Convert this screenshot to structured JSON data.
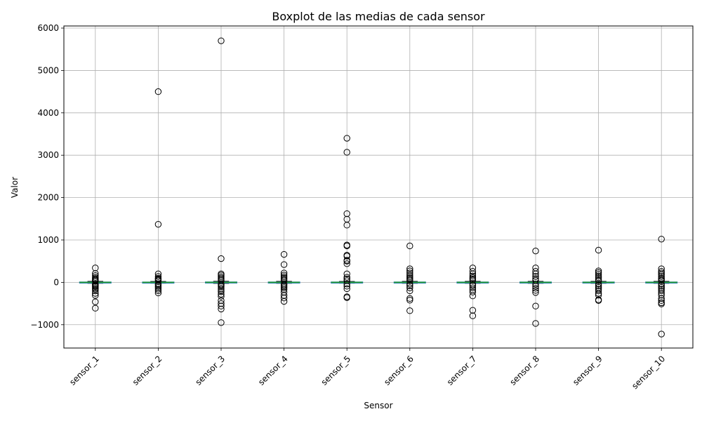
{
  "chart_data": {
    "type": "box",
    "title": "Boxplot de las medias de cada sensor",
    "xlabel": "Sensor",
    "ylabel": "Valor",
    "ylim": [
      -1550,
      6050
    ],
    "yticks": [
      -1000,
      0,
      1000,
      2000,
      3000,
      4000,
      5000,
      6000
    ],
    "ytick_labels": [
      "−1000",
      "0",
      "1000",
      "2000",
      "3000",
      "4000",
      "5000",
      "6000"
    ],
    "grid": true,
    "colors": {
      "box": "#1f77b4",
      "median": "#2ca02c",
      "outlier_edge": "#000000",
      "grid": "#b0b0b0"
    },
    "categories": [
      "sensor_1",
      "sensor_2",
      "sensor_3",
      "sensor_4",
      "sensor_5",
      "sensor_6",
      "sensor_7",
      "sensor_8",
      "sensor_9",
      "sensor_10"
    ],
    "boxes": [
      {
        "name": "sensor_1",
        "whislo": -22,
        "q1": -8,
        "med": 0,
        "q3": 8,
        "whishi": 22,
        "fliers": [
          340,
          210,
          160,
          120,
          90,
          70,
          50,
          30,
          -40,
          -60,
          -80,
          -100,
          -130,
          -160,
          -200,
          -260,
          -310,
          -460,
          -610
        ]
      },
      {
        "name": "sensor_2",
        "whislo": -20,
        "q1": -7,
        "med": 0,
        "q3": 7,
        "whishi": 20,
        "fliers": [
          4500,
          1370,
          200,
          140,
          100,
          80,
          60,
          40,
          -40,
          -60,
          -90,
          -120,
          -160,
          -200,
          -250
        ]
      },
      {
        "name": "sensor_3",
        "whislo": -25,
        "q1": -9,
        "med": 0,
        "q3": 9,
        "whishi": 25,
        "fliers": [
          5700,
          560,
          200,
          170,
          130,
          100,
          70,
          40,
          -40,
          -70,
          -100,
          -140,
          -180,
          -220,
          -280,
          -330,
          -430,
          -500,
          -560,
          -630,
          -950
        ]
      },
      {
        "name": "sensor_4",
        "whislo": -22,
        "q1": -8,
        "med": 0,
        "q3": 8,
        "whishi": 22,
        "fliers": [
          660,
          420,
          220,
          170,
          130,
          100,
          70,
          40,
          -40,
          -70,
          -100,
          -130,
          -170,
          -230,
          -310,
          -370,
          -450
        ]
      },
      {
        "name": "sensor_5",
        "whislo": -20,
        "q1": -8,
        "med": 0,
        "q3": 8,
        "whishi": 20,
        "fliers": [
          3400,
          3070,
          1620,
          1490,
          1350,
          880,
          860,
          640,
          620,
          520,
          500,
          440,
          200,
          120,
          80,
          40,
          -40,
          -90,
          -150,
          -340,
          -360
        ]
      },
      {
        "name": "sensor_6",
        "whislo": -22,
        "q1": -8,
        "med": 0,
        "q3": 8,
        "whishi": 22,
        "fliers": [
          860,
          320,
          270,
          220,
          170,
          130,
          100,
          70,
          40,
          -40,
          -80,
          -130,
          -200,
          -380,
          -420,
          -670
        ]
      },
      {
        "name": "sensor_7",
        "whislo": -22,
        "q1": -8,
        "med": 0,
        "q3": 8,
        "whishi": 22,
        "fliers": [
          340,
          260,
          200,
          150,
          110,
          80,
          50,
          -40,
          -80,
          -130,
          -180,
          -230,
          -320,
          -660,
          -790
        ]
      },
      {
        "name": "sensor_8",
        "whislo": -22,
        "q1": -8,
        "med": 0,
        "q3": 8,
        "whishi": 22,
        "fliers": [
          740,
          340,
          260,
          200,
          140,
          90,
          50,
          -40,
          -90,
          -140,
          -190,
          -240,
          -560,
          -970
        ]
      },
      {
        "name": "sensor_9",
        "whislo": -22,
        "q1": -8,
        "med": 0,
        "q3": 8,
        "whishi": 22,
        "fliers": [
          760,
          270,
          230,
          190,
          150,
          110,
          70,
          40,
          -40,
          -80,
          -120,
          -160,
          -200,
          -260,
          -300,
          -410,
          -430
        ]
      },
      {
        "name": "sensor_10",
        "whislo": -22,
        "q1": -8,
        "med": 0,
        "q3": 8,
        "whishi": 22,
        "fliers": [
          1020,
          320,
          260,
          220,
          180,
          140,
          100,
          70,
          40,
          -40,
          -80,
          -120,
          -160,
          -200,
          -250,
          -300,
          -380,
          -430,
          -480,
          -510,
          -1220
        ]
      }
    ]
  }
}
